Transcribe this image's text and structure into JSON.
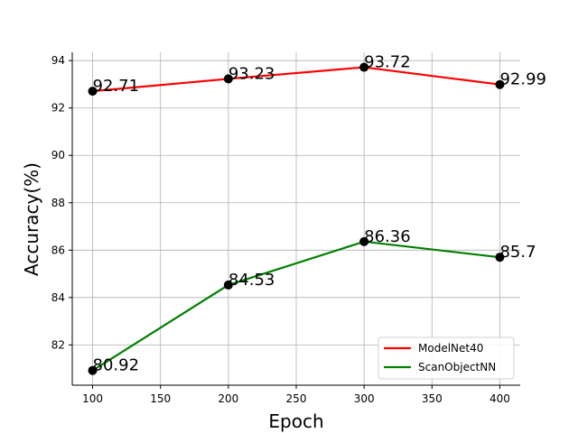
{
  "chart_data": {
    "type": "line",
    "title": "",
    "xlabel": "Epoch",
    "ylabel": "Accuracy(%)",
    "x": [
      100,
      200,
      300,
      400
    ],
    "xlim": [
      85,
      415
    ],
    "ylim": [
      80.3,
      94.35
    ],
    "xticks": [
      100,
      150,
      200,
      250,
      300,
      350,
      400
    ],
    "yticks": [
      82,
      84,
      86,
      88,
      90,
      92,
      94
    ],
    "grid": true,
    "legend_position": "lower-right",
    "series": [
      {
        "name": "ModelNet40",
        "color": "#ff0000",
        "values": [
          92.71,
          93.23,
          93.72,
          92.99
        ],
        "labels": [
          "92.71",
          "93.23",
          "93.72",
          "92.99"
        ]
      },
      {
        "name": "ScanObjectNN",
        "color": "#008000",
        "values": [
          80.92,
          84.53,
          86.36,
          85.7
        ],
        "labels": [
          "80.92",
          "84.53",
          "86.36",
          "85.7"
        ]
      }
    ],
    "marker_color": "#000000"
  }
}
